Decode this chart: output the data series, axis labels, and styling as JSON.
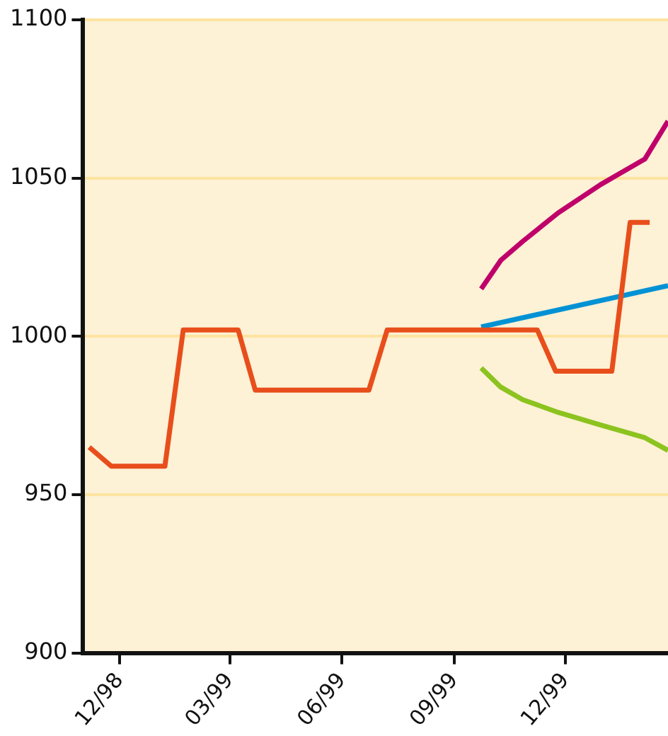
{
  "chart_data": {
    "type": "line",
    "marker": "none",
    "grid": "y",
    "legend": false,
    "xlim": [
      "1998-11-01",
      "2000-02-23"
    ],
    "xticks": [
      {
        "value": "1998-12-01",
        "label": "12/98"
      },
      {
        "value": "1999-03-01",
        "label": "03/99"
      },
      {
        "value": "1999-06-01",
        "label": "06/99"
      },
      {
        "value": "1999-09-01",
        "label": "09/99"
      },
      {
        "value": "1999-12-01",
        "label": "12/99"
      }
    ],
    "ylim": [
      900,
      1100
    ],
    "yticks": [
      900,
      950,
      1000,
      1050,
      1100
    ],
    "series": [
      {
        "color": "#e84e1b",
        "x": [
          "1998-11-06",
          "1998-11-24",
          "1999-01-07",
          "1999-01-22",
          "1999-03-08",
          "1999-03-22",
          "1999-06-23",
          "1999-07-08",
          "1999-11-08",
          "1999-11-23",
          "2000-01-08",
          "2000-01-23",
          "2000-02-08"
        ],
        "values": [
          965,
          959,
          959,
          1002,
          1002,
          983,
          983,
          1002,
          1002,
          989,
          989,
          1036,
          1036
        ]
      },
      {
        "color": "#c0006a",
        "x": [
          "1999-09-23",
          "1999-10-09",
          "1999-10-27",
          "1999-11-25",
          "1999-12-30",
          "2000-02-04",
          "2000-02-23"
        ],
        "values": [
          1015,
          1024,
          1030,
          1039,
          1048,
          1056,
          1068
        ]
      },
      {
        "color": "#0092d4",
        "x": [
          "1999-09-23",
          "2000-02-23"
        ],
        "values": [
          1003,
          1016
        ]
      },
      {
        "color": "#8cc31f",
        "x": [
          "1999-09-23",
          "1999-10-09",
          "1999-10-27",
          "1999-11-25",
          "1999-12-30",
          "2000-02-04",
          "2000-02-23"
        ],
        "values": [
          990,
          984,
          980,
          976,
          972,
          968,
          964
        ]
      }
    ]
  }
}
